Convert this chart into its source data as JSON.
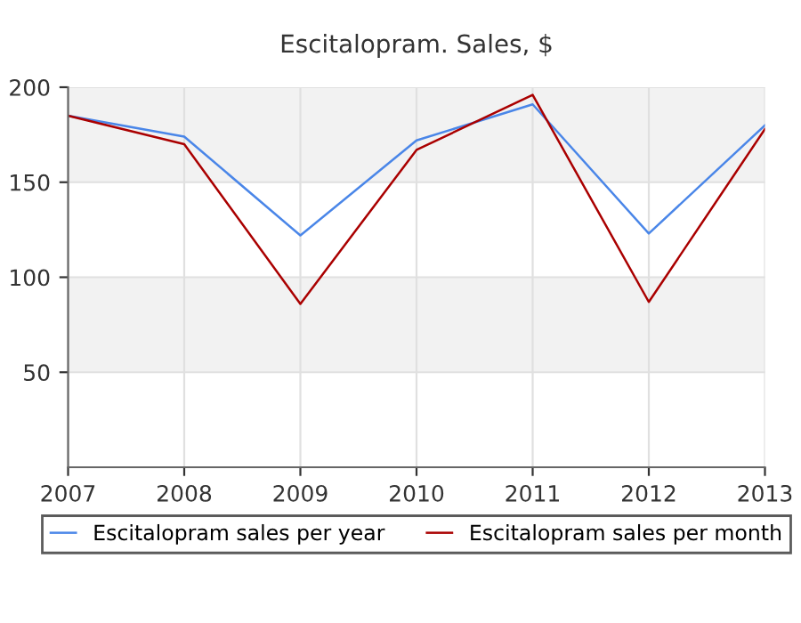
{
  "chart_data": {
    "type": "line",
    "title": "Escitalopram. Sales, $",
    "x": [
      2007,
      2008,
      2009,
      2010,
      2011,
      2012,
      2013
    ],
    "series": [
      {
        "name": "Escitalopram sales per year",
        "color": "#4a86e8",
        "values": [
          185,
          174,
          122,
          172,
          191,
          123,
          180
        ]
      },
      {
        "name": "Escitalopram sales per month",
        "color": "#aa0000",
        "values": [
          185,
          170,
          86,
          167,
          196,
          87,
          178
        ]
      }
    ],
    "xlim": [
      2007,
      2013
    ],
    "xticks": [
      2007,
      2008,
      2009,
      2010,
      2011,
      2012,
      2013
    ],
    "ylim": [
      0,
      200
    ],
    "yticks": [
      50,
      100,
      150,
      200
    ],
    "grid": true,
    "legend": "bottom",
    "marker": "none",
    "line_style": "solid"
  }
}
